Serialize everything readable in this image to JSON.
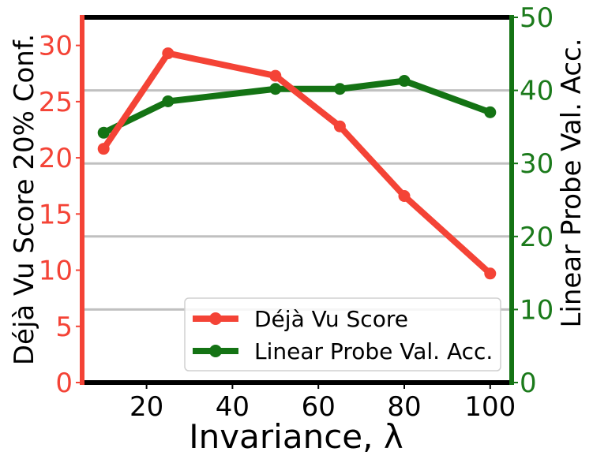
{
  "chart_data": {
    "type": "line",
    "xlabel": "Invariance, λ",
    "ylabel_left": "Déjà Vu Score 20% Conf.",
    "ylabel_right": "Linear Probe Val. Acc.",
    "x_ticks": [
      20,
      40,
      60,
      80,
      100
    ],
    "y_left_ticks": [
      0,
      5,
      10,
      15,
      20,
      25,
      30
    ],
    "y_right_ticks": [
      0,
      10,
      20,
      30,
      40,
      50
    ],
    "xlim": [
      5,
      105
    ],
    "ylim_left": [
      0,
      32.5
    ],
    "ylim_right": [
      0,
      50
    ],
    "grid_right": [
      0,
      10,
      20,
      30,
      40
    ],
    "legend_position": "lower-right",
    "colors": {
      "left": "#f44336",
      "right": "#147314",
      "grid": "#c0c0c0",
      "frame": "#000000"
    },
    "series": [
      {
        "name": "Déjà Vu Score",
        "axis": "left",
        "x": [
          10,
          25,
          50,
          65,
          80,
          100
        ],
        "y": [
          20.8,
          29.3,
          27.3,
          22.8,
          16.6,
          9.7
        ]
      },
      {
        "name": "Linear Probe Val. Acc.",
        "axis": "right",
        "x": [
          10,
          25,
          50,
          65,
          80,
          100
        ],
        "y": [
          34.2,
          38.5,
          40.2,
          40.2,
          41.3,
          37.0
        ]
      }
    ]
  }
}
